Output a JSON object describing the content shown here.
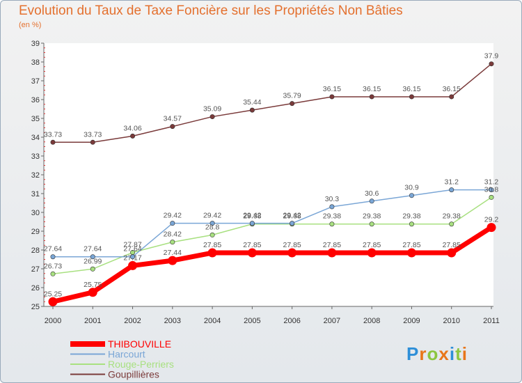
{
  "title": "Evolution du Taux de Taxe Foncière sur les Propriétés Non Bâties",
  "subtitle": "(en %)",
  "logo": {
    "text": "Proxiti",
    "letters": [
      "P",
      "r",
      "o",
      "x",
      "i",
      "t",
      "i"
    ],
    "colors": [
      "#2e8fd8",
      "#e8761a",
      "#8cc63f",
      "#e8761a",
      "#2e8fd8",
      "#8cc63f",
      "#e8761a"
    ]
  },
  "chart_data": {
    "type": "line",
    "x": [
      "2000",
      "2001",
      "2002",
      "2003",
      "2004",
      "2005",
      "2006",
      "2007",
      "2008",
      "2009",
      "2010",
      "2011"
    ],
    "ylim": [
      25,
      39
    ],
    "yticks": [
      "25",
      "26",
      "27",
      "28",
      "29",
      "30",
      "31",
      "32",
      "33",
      "34",
      "35",
      "36",
      "37",
      "38",
      "39"
    ],
    "grid": false,
    "legend_placement": "bottom-left",
    "series": [
      {
        "name": "THIBOUVILLE",
        "color": "#ff0000",
        "thick": true,
        "values": [
          25.25,
          25.75,
          27.17,
          27.44,
          27.85,
          27.85,
          27.85,
          27.85,
          27.85,
          27.85,
          27.85,
          29.2
        ],
        "labels": [
          "25.25",
          "25.75",
          "27.17",
          "27.44",
          "27.85",
          "27.85",
          "27.85",
          "27.85",
          "27.85",
          "27.85",
          "27.85",
          "29.2"
        ]
      },
      {
        "name": "Harcourt",
        "color": "#7aa6d6",
        "values": [
          27.64,
          27.64,
          27.64,
          29.42,
          29.42,
          29.42,
          29.42,
          30.3,
          30.6,
          30.9,
          31.2,
          31.2
        ],
        "labels": [
          "27.64",
          "27.64",
          "27.64",
          "29.42",
          "29.42",
          "29.42",
          "29.42",
          "30.3",
          "30.6",
          "30.9",
          "31.2",
          "31.2"
        ]
      },
      {
        "name": "Rouge-Perriers",
        "color": "#a8e080",
        "values": [
          26.73,
          26.99,
          27.87,
          28.42,
          28.8,
          29.38,
          29.38,
          29.38,
          29.38,
          29.38,
          29.38,
          30.8
        ],
        "labels": [
          "26.73",
          "26.99",
          "27.87",
          "28.42",
          "28.8",
          "29.38",
          "29.38",
          "29.38",
          "29.38",
          "29.38",
          "29.38",
          "30.8"
        ]
      },
      {
        "name": "Goupillières",
        "color": "#7a3a3a",
        "values": [
          33.73,
          33.73,
          34.06,
          34.57,
          35.09,
          35.44,
          35.79,
          36.15,
          36.15,
          36.15,
          36.15,
          37.9
        ],
        "labels": [
          "33.73",
          "33.73",
          "34.06",
          "34.57",
          "35.09",
          "35.44",
          "35.79",
          "36.15",
          "36.15",
          "36.15",
          "36.15",
          "37.9"
        ]
      }
    ]
  }
}
